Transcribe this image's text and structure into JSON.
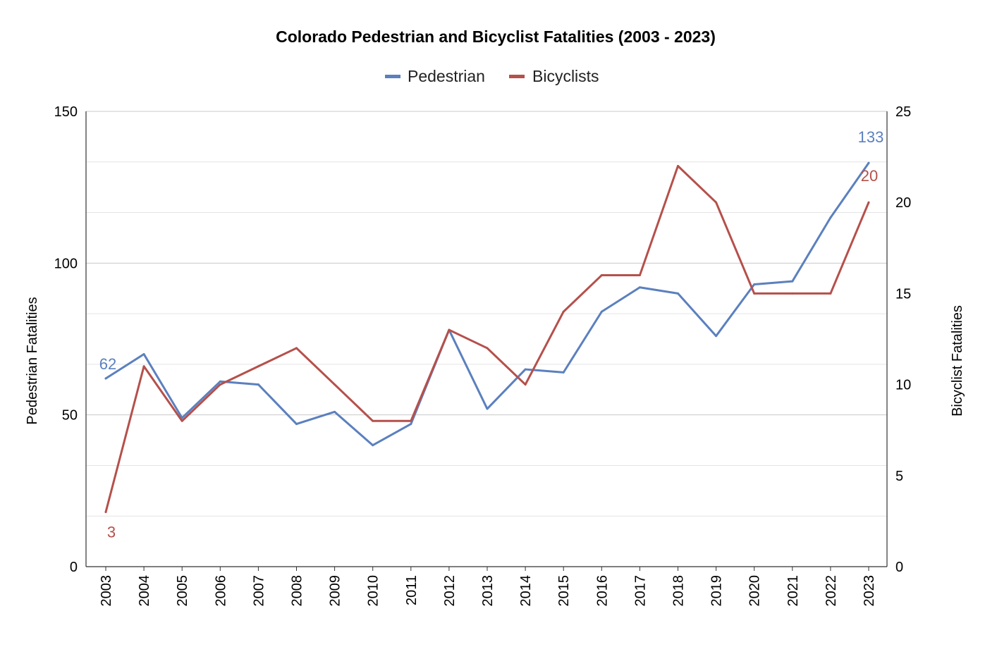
{
  "colors": {
    "pedestrian": "#5b80be",
    "bicyclists": "#b5504b",
    "grid": "#d9d9d9",
    "axis": "#333333"
  },
  "chart_data": {
    "type": "line",
    "title": "Colorado Pedestrian and Bicyclist Fatalities (2003 - 2023)",
    "categories": [
      "2003",
      "2004",
      "2005",
      "2006",
      "2007",
      "2008",
      "2009",
      "2010",
      "2011",
      "2012",
      "2013",
      "2014",
      "2015",
      "2016",
      "2017",
      "2018",
      "2019",
      "2020",
      "2021",
      "2022",
      "2023"
    ],
    "series": [
      {
        "name": "Pedestrian",
        "axis": "left",
        "color": "#5b80be",
        "values": [
          62,
          70,
          49,
          61,
          60,
          47,
          51,
          40,
          47,
          78,
          52,
          65,
          64,
          84,
          92,
          90,
          76,
          93,
          94,
          115,
          133
        ]
      },
      {
        "name": "Bicyclists",
        "axis": "right",
        "color": "#b5504b",
        "values": [
          3,
          11,
          8,
          10,
          11,
          12,
          10,
          8,
          8,
          13,
          12,
          10,
          14,
          16,
          16,
          22,
          20,
          15,
          15,
          15,
          20
        ]
      }
    ],
    "ylabel": "Pedestrian Fatalities",
    "y2label": "Bicyclist Fatalities",
    "ylim": [
      0,
      150
    ],
    "y2lim": [
      0,
      25
    ],
    "yticks": [
      "0",
      "50",
      "100",
      "150"
    ],
    "y2ticks": [
      "0",
      "5",
      "10",
      "15",
      "20",
      "25"
    ],
    "data_labels": {
      "pedestrian_first": "62",
      "pedestrian_last": "133",
      "bicyclists_first": "3",
      "bicyclists_last": "20"
    },
    "legend_position": "top-center",
    "grid": true
  }
}
